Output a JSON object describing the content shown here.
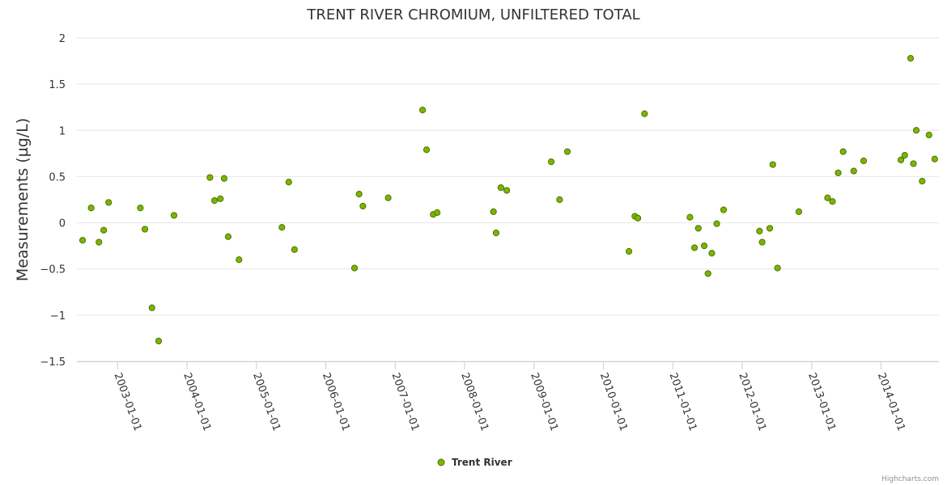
{
  "chart_data": {
    "type": "scatter",
    "title": "TRENT RIVER CHROMIUM, UNFILTERED TOTAL",
    "xlabel": "",
    "ylabel": "Measurements (µg/L)",
    "ylim": [
      -1.5,
      2
    ],
    "yticks": [
      -1.5,
      -1,
      -0.5,
      0,
      0.5,
      1,
      1.5,
      2
    ],
    "ytick_labels": [
      "−1.5",
      "−1",
      "−0.5",
      "0",
      "0.5",
      "1",
      "1.5",
      "2"
    ],
    "xlim": [
      "2002-06-01",
      "2014-11-01"
    ],
    "xtick_labels": [
      "2003-01-01",
      "2004-01-01",
      "2005-01-01",
      "2006-01-01",
      "2007-01-01",
      "2008-01-01",
      "2009-01-01",
      "2010-01-01",
      "2011-01-01",
      "2012-01-01",
      "2013-01-01",
      "2014-01-01"
    ],
    "grid": "horizontal",
    "legend": "bottom-center",
    "marker_color": "#7cb500",
    "marker_stroke": "#4c7500",
    "series": [
      {
        "name": "Trent River",
        "points": [
          {
            "x": "2002-07-01",
            "y": -0.19
          },
          {
            "x": "2002-08-15",
            "y": 0.16
          },
          {
            "x": "2002-09-25",
            "y": -0.21
          },
          {
            "x": "2002-10-20",
            "y": -0.08
          },
          {
            "x": "2002-11-15",
            "y": 0.22
          },
          {
            "x": "2003-05-01",
            "y": 0.16
          },
          {
            "x": "2003-05-25",
            "y": -0.07
          },
          {
            "x": "2003-07-01",
            "y": -0.92
          },
          {
            "x": "2003-08-05",
            "y": -1.28
          },
          {
            "x": "2003-10-25",
            "y": 0.08
          },
          {
            "x": "2004-05-01",
            "y": 0.49
          },
          {
            "x": "2004-05-25",
            "y": 0.24
          },
          {
            "x": "2004-06-25",
            "y": 0.26
          },
          {
            "x": "2004-07-15",
            "y": 0.48
          },
          {
            "x": "2004-08-05",
            "y": -0.15
          },
          {
            "x": "2004-10-01",
            "y": -0.4
          },
          {
            "x": "2005-05-15",
            "y": -0.05
          },
          {
            "x": "2005-06-20",
            "y": 0.44
          },
          {
            "x": "2005-07-20",
            "y": -0.29
          },
          {
            "x": "2006-06-01",
            "y": -0.49
          },
          {
            "x": "2006-06-25",
            "y": 0.31
          },
          {
            "x": "2006-07-15",
            "y": 0.18
          },
          {
            "x": "2006-11-25",
            "y": 0.27
          },
          {
            "x": "2007-05-25",
            "y": 1.22
          },
          {
            "x": "2007-06-15",
            "y": 0.79
          },
          {
            "x": "2007-07-20",
            "y": 0.09
          },
          {
            "x": "2007-08-10",
            "y": 0.11
          },
          {
            "x": "2008-06-01",
            "y": 0.12
          },
          {
            "x": "2008-06-15",
            "y": -0.11
          },
          {
            "x": "2008-07-10",
            "y": 0.38
          },
          {
            "x": "2008-08-10",
            "y": 0.35
          },
          {
            "x": "2009-04-01",
            "y": 0.66
          },
          {
            "x": "2009-05-15",
            "y": 0.25
          },
          {
            "x": "2009-06-25",
            "y": 0.77
          },
          {
            "x": "2010-05-15",
            "y": -0.31
          },
          {
            "x": "2010-06-15",
            "y": 0.07
          },
          {
            "x": "2010-07-01",
            "y": 0.05
          },
          {
            "x": "2010-08-05",
            "y": 1.18
          },
          {
            "x": "2011-04-01",
            "y": 0.06
          },
          {
            "x": "2011-04-25",
            "y": -0.27
          },
          {
            "x": "2011-05-15",
            "y": -0.06
          },
          {
            "x": "2011-06-15",
            "y": -0.25
          },
          {
            "x": "2011-07-05",
            "y": -0.55
          },
          {
            "x": "2011-07-25",
            "y": -0.33
          },
          {
            "x": "2011-08-20",
            "y": -0.01
          },
          {
            "x": "2011-09-25",
            "y": 0.14
          },
          {
            "x": "2012-04-01",
            "y": -0.09
          },
          {
            "x": "2012-04-15",
            "y": -0.21
          },
          {
            "x": "2012-05-25",
            "y": -0.06
          },
          {
            "x": "2012-06-10",
            "y": 0.63
          },
          {
            "x": "2012-07-05",
            "y": -0.49
          },
          {
            "x": "2012-10-25",
            "y": 0.12
          },
          {
            "x": "2013-03-25",
            "y": 0.27
          },
          {
            "x": "2013-04-20",
            "y": 0.23
          },
          {
            "x": "2013-05-20",
            "y": 0.54
          },
          {
            "x": "2013-06-15",
            "y": 0.77
          },
          {
            "x": "2013-08-10",
            "y": 0.56
          },
          {
            "x": "2013-10-01",
            "y": 0.67
          },
          {
            "x": "2014-04-15",
            "y": 0.68
          },
          {
            "x": "2014-05-05",
            "y": 0.73
          },
          {
            "x": "2014-06-05",
            "y": 1.78
          },
          {
            "x": "2014-06-20",
            "y": 0.64
          },
          {
            "x": "2014-07-05",
            "y": 1.0
          },
          {
            "x": "2014-08-05",
            "y": 0.45
          },
          {
            "x": "2014-09-10",
            "y": 0.95
          },
          {
            "x": "2014-10-10",
            "y": 0.69
          }
        ]
      }
    ]
  },
  "credit": "Highcharts.com"
}
